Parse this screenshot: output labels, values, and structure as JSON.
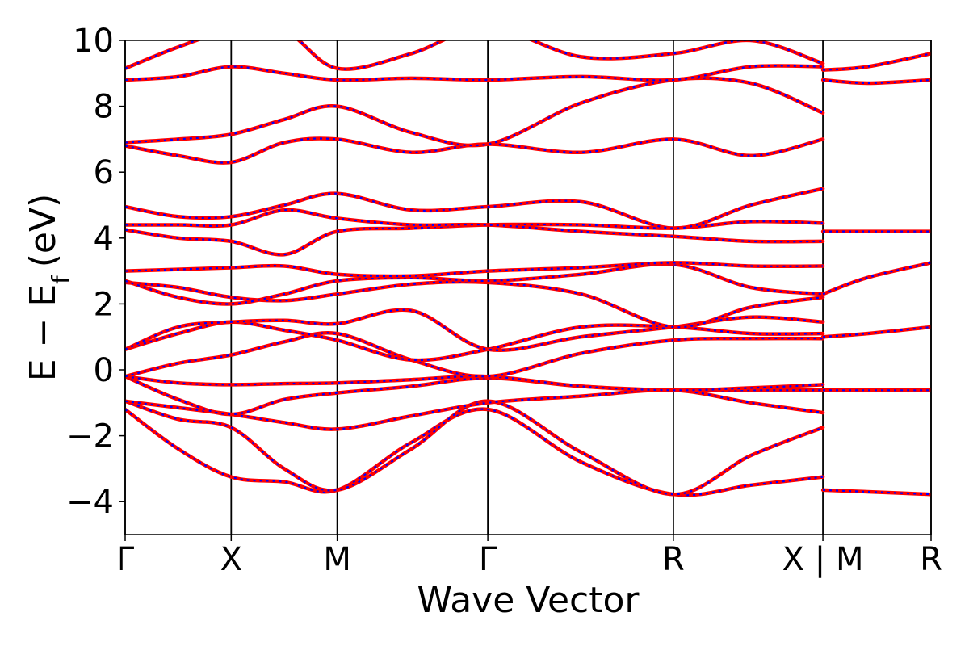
{
  "chart_data": {
    "type": "line",
    "title": "",
    "xlabel": "Wave Vector",
    "ylabel": "E − E",
    "ylabel_subscript": "f",
    "ylabel_unit": "(eV)",
    "ylim": [
      -5,
      10
    ],
    "yticks": [
      -4,
      -2,
      0,
      2,
      4,
      6,
      8,
      10
    ],
    "ytick_labels": [
      "−4",
      "−2",
      "0",
      "2",
      "4",
      "6",
      "8",
      "10"
    ],
    "xlim": [
      0,
      7.6
    ],
    "kpoints": [
      {
        "label": "Γ",
        "x": 0
      },
      {
        "label": "X",
        "x": 1.0
      },
      {
        "label": "M",
        "x": 2.0
      },
      {
        "label": "Γ",
        "x": 3.42
      },
      {
        "label": "R",
        "x": 5.17
      },
      {
        "label": "X | M",
        "x": 6.58
      },
      {
        "label": "R",
        "x": 7.6
      }
    ],
    "grid": false,
    "legend": "none",
    "style": {
      "outer_color": "#ff0000",
      "inner_color": "#0000ff",
      "inner_dashed": true,
      "vertical_line_color": "#000000"
    },
    "series": [
      {
        "x": [
          0,
          0.5,
          1.0,
          1.5,
          2.0,
          2.7,
          3.42,
          4.3,
          5.17,
          5.9,
          6.58
        ],
        "values": [
          -1.2,
          -2.4,
          -3.25,
          -3.4,
          -3.65,
          -2.2,
          -1.2,
          -2.8,
          -3.78,
          -3.5,
          -3.25
        ]
      },
      {
        "x": [
          0,
          0.5,
          1.0,
          1.5,
          2.0,
          2.7,
          3.42,
          4.3,
          5.17,
          5.9,
          6.58
        ],
        "values": [
          -0.95,
          -1.5,
          -1.75,
          -3.0,
          -3.65,
          -2.4,
          -0.95,
          -2.5,
          -3.78,
          -2.6,
          -1.75
        ]
      },
      {
        "x": [
          0,
          0.5,
          1.0,
          1.5,
          2.0,
          2.7,
          3.42,
          4.3,
          5.17,
          5.9,
          6.58
        ],
        "values": [
          -0.95,
          -1.15,
          -1.35,
          -1.6,
          -1.8,
          -1.4,
          -1.0,
          -0.8,
          -0.62,
          -1.0,
          -1.3
        ]
      },
      {
        "x": [
          0,
          0.5,
          1.0,
          1.5,
          2.0,
          2.7,
          3.42,
          4.3,
          5.17,
          5.9,
          6.58
        ],
        "values": [
          -0.2,
          -0.9,
          -1.35,
          -0.9,
          -0.7,
          -0.5,
          -0.25,
          -0.5,
          -0.62,
          -0.62,
          -0.62
        ]
      },
      {
        "x": [
          0,
          0.5,
          1.0,
          1.5,
          2.0,
          2.7,
          3.42,
          4.3,
          5.17,
          5.9,
          6.58
        ],
        "values": [
          -0.2,
          -0.4,
          -0.45,
          -0.42,
          -0.4,
          -0.3,
          -0.2,
          -0.5,
          -0.62,
          -0.55,
          -0.45
        ]
      },
      {
        "x": [
          0,
          0.5,
          1.0,
          1.5,
          2.0,
          2.7,
          3.42,
          4.3,
          5.17,
          5.9,
          6.58
        ],
        "values": [
          -0.2,
          0.2,
          0.45,
          0.85,
          1.1,
          0.3,
          -0.2,
          0.5,
          0.9,
          0.95,
          0.95
        ]
      },
      {
        "x": [
          0,
          0.5,
          1.0,
          1.5,
          2.0,
          2.7,
          3.42,
          4.3,
          5.17,
          5.9,
          6.58
        ],
        "values": [
          0.62,
          1.1,
          1.45,
          1.2,
          0.9,
          0.3,
          0.62,
          1.3,
          1.3,
          1.1,
          1.1
        ]
      },
      {
        "x": [
          0,
          0.5,
          1.0,
          1.5,
          2.0,
          2.7,
          3.42,
          4.3,
          5.17,
          5.9,
          6.58
        ],
        "values": [
          0.62,
          1.3,
          1.45,
          1.5,
          1.4,
          1.8,
          0.62,
          1.0,
          1.3,
          1.6,
          1.45
        ]
      },
      {
        "x": [
          0,
          0.5,
          1.0,
          1.5,
          2.0,
          2.7,
          3.42,
          4.3,
          5.17,
          5.9,
          6.58
        ],
        "values": [
          2.65,
          2.5,
          2.2,
          2.1,
          2.3,
          2.6,
          2.65,
          2.3,
          1.3,
          1.9,
          2.2
        ]
      },
      {
        "x": [
          0,
          0.5,
          1.0,
          1.5,
          2.0,
          2.7,
          3.42,
          4.3,
          5.17,
          5.9,
          6.58
        ],
        "values": [
          2.7,
          2.2,
          2.0,
          2.3,
          2.7,
          2.8,
          2.7,
          2.9,
          3.2,
          2.5,
          2.3
        ]
      },
      {
        "x": [
          0,
          0.5,
          1.0,
          1.5,
          2.0,
          2.7,
          3.42,
          4.3,
          5.17,
          5.9,
          6.58
        ],
        "values": [
          3.0,
          3.05,
          3.1,
          3.15,
          2.9,
          2.85,
          3.0,
          3.1,
          3.25,
          3.15,
          3.15
        ]
      },
      {
        "x": [
          0,
          0.5,
          1.0,
          1.5,
          2.0,
          2.7,
          3.42,
          4.3,
          5.17,
          5.9,
          6.58
        ],
        "values": [
          4.25,
          4.0,
          3.9,
          3.5,
          4.2,
          4.3,
          4.4,
          4.4,
          4.3,
          4.5,
          4.45
        ]
      },
      {
        "x": [
          0,
          0.5,
          1.0,
          1.5,
          2.0,
          2.7,
          3.42,
          4.3,
          5.17,
          5.9,
          6.58
        ],
        "values": [
          4.4,
          4.4,
          4.4,
          4.85,
          4.6,
          4.4,
          4.4,
          4.2,
          4.05,
          3.9,
          3.9
        ]
      },
      {
        "x": [
          0,
          0.5,
          1.0,
          1.5,
          2.0,
          2.7,
          3.42,
          4.3,
          5.17,
          5.9,
          6.58
        ],
        "values": [
          4.95,
          4.65,
          4.65,
          5.0,
          5.35,
          4.85,
          4.95,
          5.1,
          4.3,
          5.0,
          5.5
        ]
      },
      {
        "x": [
          0,
          0.5,
          1.0,
          1.5,
          2.0,
          2.7,
          3.42,
          4.3,
          5.17,
          5.9,
          6.58
        ],
        "values": [
          6.8,
          6.5,
          6.3,
          6.9,
          7.0,
          6.6,
          6.85,
          6.6,
          7.0,
          6.5,
          7.0
        ]
      },
      {
        "x": [
          0,
          0.5,
          1.0,
          1.5,
          2.0,
          2.7,
          3.42,
          4.3,
          5.17,
          5.9,
          6.58
        ],
        "values": [
          6.9,
          7.0,
          7.15,
          7.6,
          8.0,
          7.2,
          6.85,
          8.1,
          8.8,
          8.7,
          7.8
        ]
      },
      {
        "x": [
          0,
          0.5,
          1.0,
          1.5,
          2.0,
          2.7,
          3.42,
          4.3,
          5.17,
          5.9,
          6.58
        ],
        "values": [
          8.8,
          8.9,
          9.2,
          9.0,
          8.8,
          8.85,
          8.8,
          8.9,
          8.8,
          9.2,
          9.2
        ]
      },
      {
        "x": [
          0,
          0.5,
          1.0,
          1.5,
          2.0,
          2.7,
          3.42,
          4.3,
          5.17,
          5.9,
          6.58
        ],
        "values": [
          9.15,
          9.8,
          10.3,
          10.3,
          9.15,
          9.6,
          10.4,
          9.5,
          9.6,
          10.0,
          9.3
        ]
      },
      {
        "x": [
          6.58,
          7.0,
          7.6
        ],
        "values": [
          -3.65,
          -3.7,
          -3.78
        ]
      },
      {
        "x": [
          6.58,
          7.0,
          7.6
        ],
        "values": [
          -0.62,
          -0.62,
          -0.62
        ]
      },
      {
        "x": [
          6.58,
          7.0,
          7.6
        ],
        "values": [
          1.0,
          1.1,
          1.3
        ]
      },
      {
        "x": [
          6.58,
          7.0,
          7.6
        ],
        "values": [
          2.3,
          2.8,
          3.25
        ]
      },
      {
        "x": [
          6.58,
          7.0,
          7.6
        ],
        "values": [
          4.2,
          4.2,
          4.2
        ]
      },
      {
        "x": [
          6.58,
          7.0,
          7.6
        ],
        "values": [
          8.8,
          8.7,
          8.8
        ]
      },
      {
        "x": [
          6.58,
          7.0,
          7.6
        ],
        "values": [
          9.1,
          9.2,
          9.6
        ]
      }
    ]
  }
}
